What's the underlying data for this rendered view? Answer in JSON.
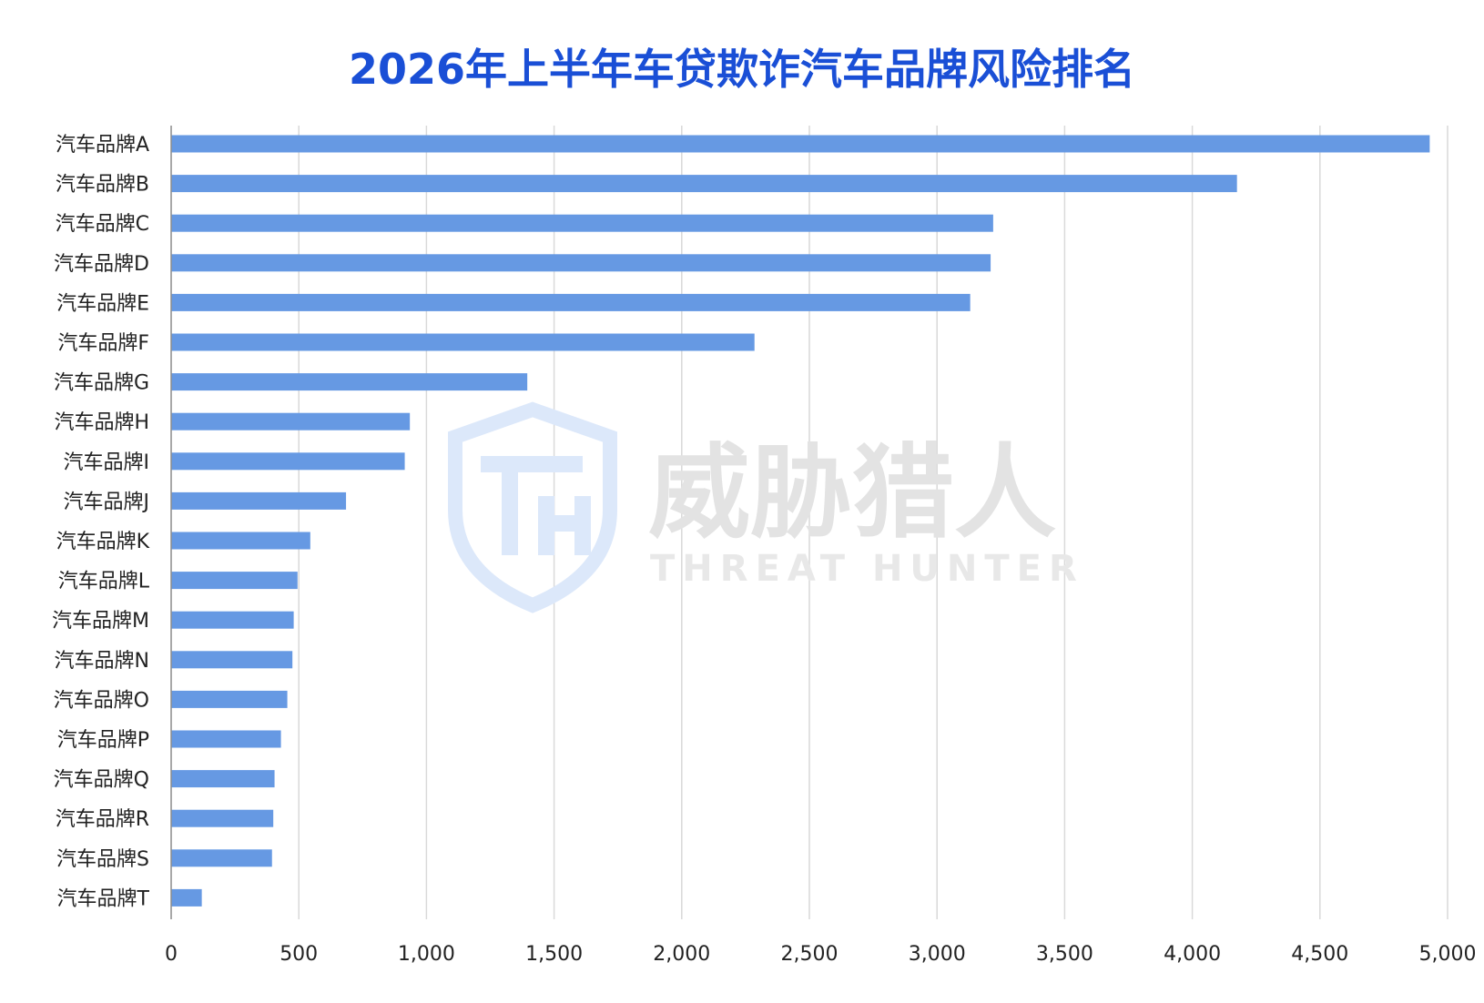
{
  "chart_data": {
    "type": "bar",
    "orientation": "horizontal",
    "title": "2026年上半年车贷欺诈汽车品牌风险排名",
    "categories": [
      "汽车品牌A",
      "汽车品牌B",
      "汽车品牌C",
      "汽车品牌D",
      "汽车品牌E",
      "汽车品牌F",
      "汽车品牌G",
      "汽车品牌H",
      "汽车品牌I",
      "汽车品牌J",
      "汽车品牌K",
      "汽车品牌L",
      "汽车品牌M",
      "汽车品牌N",
      "汽车品牌O",
      "汽车品牌P",
      "汽车品牌Q",
      "汽车品牌R",
      "汽车品牌S",
      "汽车品牌T"
    ],
    "values": [
      4930,
      4175,
      3220,
      3210,
      3130,
      2285,
      1395,
      935,
      915,
      685,
      545,
      495,
      480,
      475,
      455,
      430,
      405,
      400,
      395,
      120
    ],
    "xlim": [
      0,
      5000
    ],
    "xticks": [
      0,
      500,
      1000,
      1500,
      2000,
      2500,
      3000,
      3500,
      4000,
      4500,
      5000
    ],
    "xtick_labels": [
      "0",
      "500",
      "1,000",
      "1,500",
      "2,000",
      "2,500",
      "3,000",
      "3,500",
      "4,000",
      "4,500",
      "5,000"
    ],
    "grid": true,
    "bar_color": "#6699e3",
    "title_color": "#1a4fd6"
  },
  "watermark": {
    "logo_icon": "shield-th-logo",
    "text": "威胁猎人",
    "subtext": "THREAT HUNTER"
  }
}
